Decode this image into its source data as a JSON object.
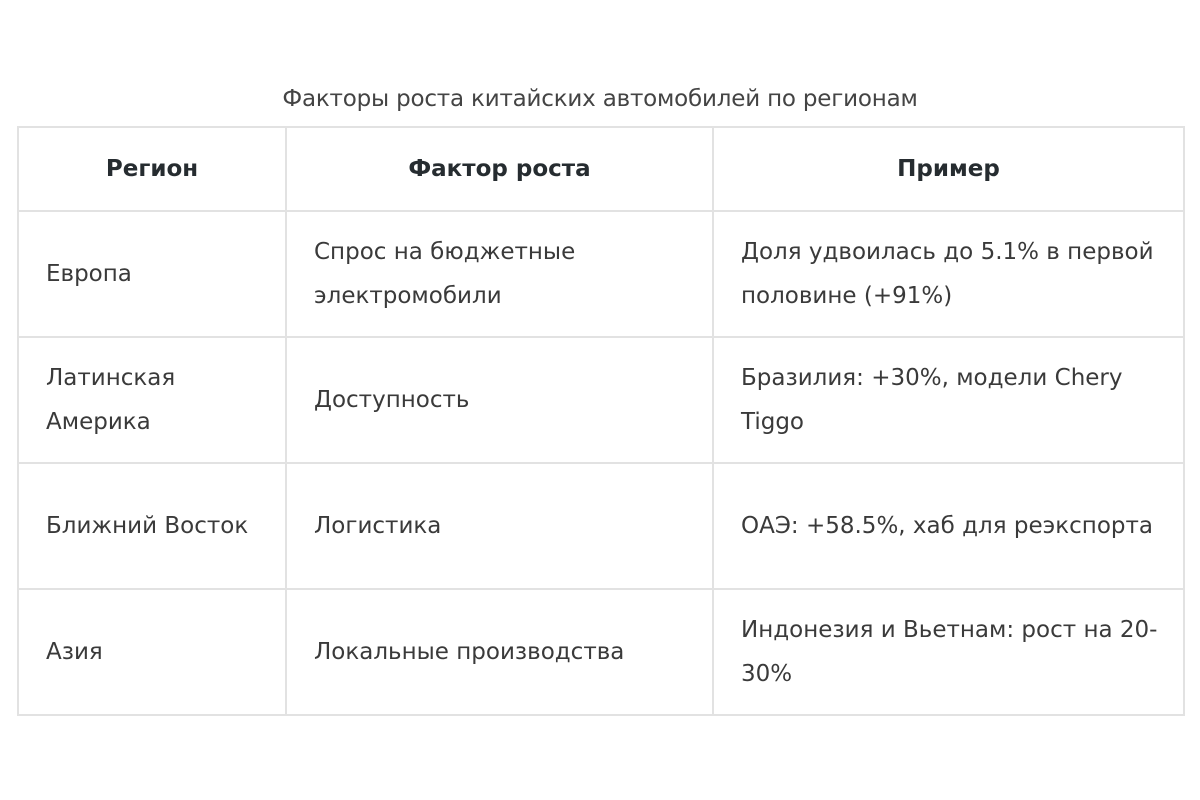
{
  "table": {
    "caption": "Факторы роста китайских автомобилей по регионам",
    "headers": [
      "Регион",
      "Фактор роста",
      "Пример"
    ],
    "rows": [
      [
        "Европа",
        "Спрос на бюджетные электромобили",
        "Доля удвоилась до 5.1% в первой половине (+91%)"
      ],
      [
        "Латинская Америка",
        "Доступность",
        "Бразилия: +30%, модели Chery Tiggo"
      ],
      [
        "Ближний Восток",
        "Логистика",
        "ОАЭ: +58.5%, хаб для реэкспорта"
      ],
      [
        "Азия",
        "Локальные производства",
        "Индонезия и Вьетнам: рост на 20-30%"
      ]
    ]
  }
}
